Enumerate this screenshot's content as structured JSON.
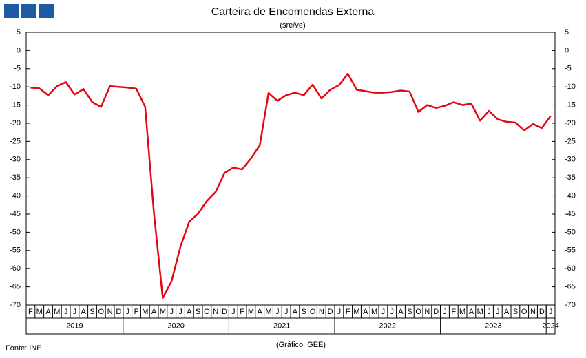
{
  "header": {
    "source": "Fonte: INE",
    "credit": "(Gráfico: GEE)"
  },
  "chart_data": {
    "type": "line",
    "title": "Carteira de Encomendas Externa",
    "subtitle": "(sre/ve)",
    "categories": [
      "F",
      "M",
      "A",
      "M",
      "J",
      "J",
      "A",
      "S",
      "O",
      "N",
      "D",
      "J",
      "F",
      "M",
      "A",
      "M",
      "J",
      "J",
      "A",
      "S",
      "O",
      "N",
      "D",
      "J",
      "F",
      "M",
      "A",
      "M",
      "J",
      "J",
      "A",
      "S",
      "O",
      "N",
      "D",
      "J",
      "F",
      "M",
      "A",
      "M",
      "J",
      "J",
      "A",
      "S",
      "O",
      "N",
      "D",
      "J",
      "F",
      "M",
      "A",
      "M",
      "J",
      "J",
      "A",
      "S",
      "O",
      "N",
      "D",
      "J"
    ],
    "years": [
      "2019",
      "2020",
      "2021",
      "2022",
      "2023",
      "2024"
    ],
    "color": "#e30613",
    "values": [
      -10.2,
      -10.4,
      -12.3,
      -9.8,
      -8.7,
      -12.1,
      -10.6,
      -14.2,
      -15.5,
      -9.8,
      -10.0,
      -10.2,
      -10.5,
      -15.5,
      -44.8,
      -68.1,
      -63.4,
      -54.0,
      -47.1,
      -44.9,
      -41.4,
      -38.9,
      -33.7,
      -32.2,
      -32.7,
      -29.7,
      -26.1,
      -11.7,
      -13.8,
      -12.3,
      -11.6,
      -12.3,
      -9.4,
      -13.2,
      -10.8,
      -9.5,
      -6.4,
      -10.8,
      -11.2,
      -11.6,
      -11.6,
      -11.4,
      -11.0,
      -11.3,
      -16.9,
      -15.0,
      -15.8,
      -15.2,
      -14.2,
      -15.0,
      -14.6,
      -19.3,
      -16.6,
      -18.9,
      -19.6,
      -19.8,
      -22.0,
      -20.2,
      -21.3,
      -18.0
    ],
    "ylim": [
      -70,
      5
    ],
    "yticks": [
      5,
      0,
      -5,
      -10,
      -15,
      -20,
      -25,
      -30,
      -35,
      -40,
      -45,
      -50,
      -55,
      -60,
      -65,
      -70
    ]
  }
}
